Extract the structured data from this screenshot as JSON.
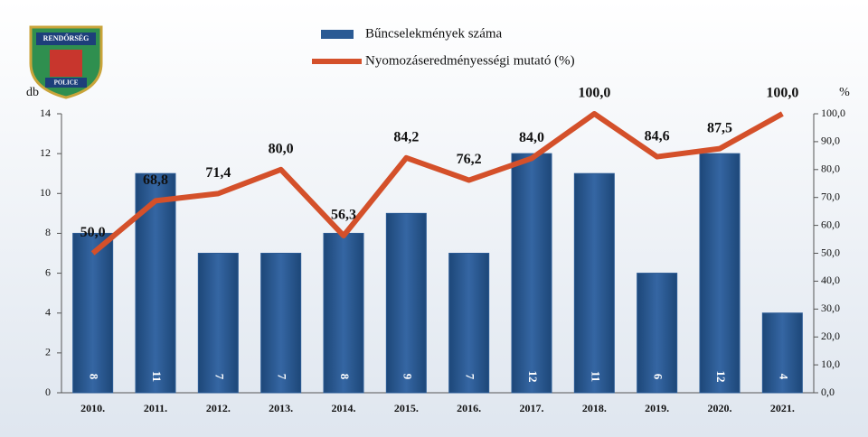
{
  "logo": {
    "top": "RENDŐRSÉG",
    "bottom": "POLICE"
  },
  "chart_data": {
    "type": "bar",
    "categories": [
      "2010.",
      "2011.",
      "2012.",
      "2013.",
      "2014.",
      "2015.",
      "2016.",
      "2017.",
      "2018.",
      "2019.",
      "2020.",
      "2021."
    ],
    "y_label": "db",
    "y2_label": "%",
    "ylim": [
      0,
      14
    ],
    "yticks": [
      0,
      2,
      4,
      6,
      8,
      10,
      12,
      14
    ],
    "y2lim": [
      0,
      100
    ],
    "y2ticks": [
      {
        "value": 0,
        "label": "0,0"
      },
      {
        "value": 10,
        "label": "10,0"
      },
      {
        "value": 20,
        "label": "20,0"
      },
      {
        "value": 30,
        "label": "30,0"
      },
      {
        "value": 40,
        "label": "40,0"
      },
      {
        "value": 50,
        "label": "50,0"
      },
      {
        "value": 60,
        "label": "60,0"
      },
      {
        "value": 70,
        "label": "70,0"
      },
      {
        "value": 80,
        "label": "80,0"
      },
      {
        "value": 90,
        "label": "90,0"
      },
      {
        "value": 100,
        "label": "100,0"
      }
    ],
    "series": [
      {
        "name": "Bűncselekmények száma",
        "type": "bar",
        "color": "#2a5a94",
        "values": [
          8,
          11,
          7,
          7,
          8,
          9,
          7,
          12,
          11,
          6,
          12,
          4
        ]
      },
      {
        "name": "Nyomozáseredményességi mutató (%)",
        "type": "line",
        "axis": "y2",
        "color": "#d4502a",
        "values": [
          50.0,
          68.8,
          71.4,
          80.0,
          56.3,
          84.2,
          76.2,
          84.0,
          100.0,
          84.6,
          87.5,
          100.0
        ],
        "value_labels": [
          "50,0",
          "68,8",
          "71,4",
          "80,0",
          "56,3",
          "84,2",
          "76,2",
          "84,0",
          "100,0",
          "84,6",
          "87,5",
          "100,0"
        ]
      }
    ]
  }
}
